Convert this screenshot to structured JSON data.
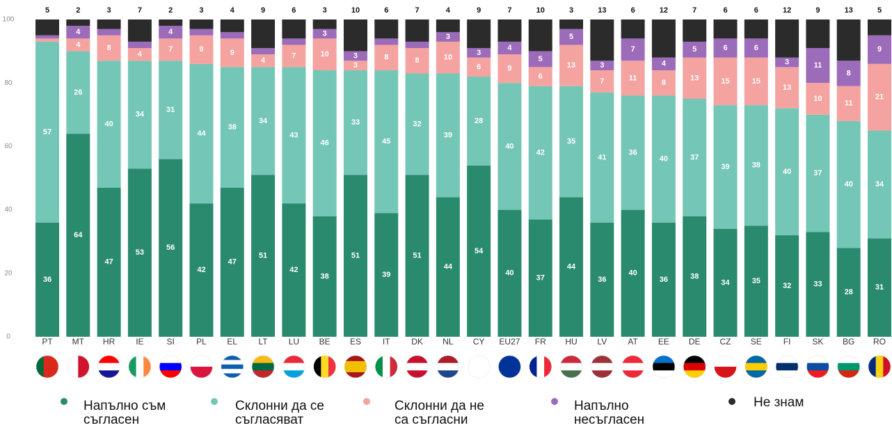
{
  "chart_data": {
    "type": "stacked_bar",
    "categories": [
      "PT",
      "MT",
      "HR",
      "IE",
      "SI",
      "PL",
      "EL",
      "LT",
      "LU",
      "BE",
      "ES",
      "IT",
      "DK",
      "NL",
      "CY",
      "EU27",
      "FR",
      "HU",
      "LV",
      "AT",
      "EE",
      "DE",
      "CZ",
      "SE",
      "FI",
      "SK",
      "BG",
      "RO"
    ],
    "series": [
      {
        "name": "Напълно съм съгласен",
        "color": "#2a8a6e",
        "values": [
          36,
          64,
          47,
          53,
          56,
          42,
          47,
          51,
          42,
          38,
          51,
          39,
          51,
          44,
          54,
          40,
          37,
          44,
          36,
          40,
          36,
          38,
          34,
          35,
          32,
          33,
          28,
          31
        ]
      },
      {
        "name": "Склонни да се съгласяват",
        "color": "#74c6b6",
        "values": [
          57,
          26,
          40,
          34,
          31,
          44,
          38,
          34,
          43,
          46,
          33,
          45,
          32,
          39,
          28,
          40,
          42,
          35,
          41,
          36,
          40,
          37,
          39,
          38,
          40,
          37,
          40,
          34
        ]
      },
      {
        "name": "Склонни да не са съгласни",
        "color": "#f5a3a0",
        "values": [
          1,
          4,
          8,
          4,
          7,
          9,
          9,
          4,
          7,
          10,
          3,
          8,
          8,
          10,
          6,
          9,
          6,
          13,
          7,
          11,
          8,
          13,
          15,
          15,
          13,
          10,
          11,
          21
        ]
      },
      {
        "name": "Напълно несъгласен",
        "color": "#9c6bb9",
        "values": [
          1,
          4,
          2,
          2,
          4,
          2,
          2,
          2,
          2,
          3,
          3,
          2,
          2,
          3,
          3,
          4,
          5,
          5,
          3,
          7,
          4,
          5,
          6,
          6,
          3,
          11,
          8,
          9
        ]
      },
      {
        "name": "Не знам",
        "color": "#2b2b2b",
        "values": [
          5,
          2,
          3,
          7,
          2,
          3,
          4,
          9,
          6,
          3,
          10,
          6,
          7,
          4,
          9,
          7,
          10,
          3,
          13,
          6,
          12,
          7,
          6,
          6,
          12,
          9,
          13,
          5
        ]
      }
    ],
    "ylim": [
      0,
      100
    ],
    "yticks": [
      0,
      20,
      40,
      60,
      80,
      100
    ]
  }
}
